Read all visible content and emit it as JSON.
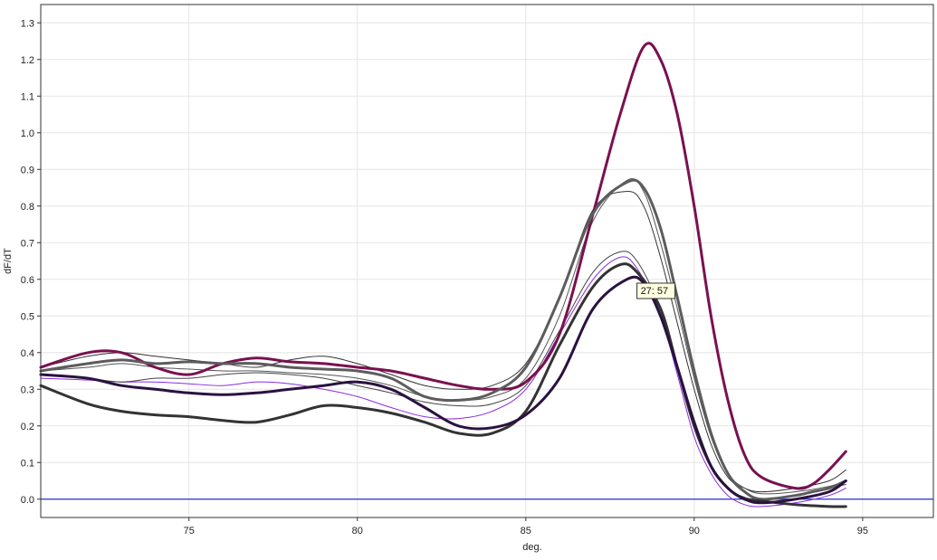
{
  "chart_data": {
    "type": "line",
    "title": "",
    "xlabel": "deg.",
    "ylabel": "dF/dT",
    "xlim": [
      70.6,
      97.1
    ],
    "ylim": [
      -0.05,
      1.35
    ],
    "x_ticks": [
      75,
      80,
      85,
      90,
      95
    ],
    "y_ticks": [
      0.0,
      0.1,
      0.2,
      0.3,
      0.4,
      0.5,
      0.6,
      0.7,
      0.8,
      0.9,
      1.0,
      1.1,
      1.2,
      1.3
    ],
    "y_tick_labels": [
      "0.0",
      "0.1",
      "0.2",
      "0.3",
      "0.4",
      "0.5",
      "0.6",
      "0.7",
      "0.8",
      "0.9",
      "1.0",
      "1.1",
      "1.2",
      "1.3"
    ],
    "grid": true,
    "baseline": {
      "y": 0.0,
      "color": "#2233cc"
    },
    "tooltip": {
      "text": "27: 57",
      "x": 88.3,
      "y": 0.55
    },
    "series": [
      {
        "color": "#7a1050",
        "width": 3,
        "points": [
          [
            70.6,
            0.36
          ],
          [
            72,
            0.4
          ],
          [
            73,
            0.4
          ],
          [
            74,
            0.36
          ],
          [
            75,
            0.34
          ],
          [
            76,
            0.37
          ],
          [
            77,
            0.385
          ],
          [
            78,
            0.375
          ],
          [
            79,
            0.37
          ],
          [
            80,
            0.36
          ],
          [
            81,
            0.35
          ],
          [
            82,
            0.33
          ],
          [
            83,
            0.31
          ],
          [
            84,
            0.3
          ],
          [
            85,
            0.32
          ],
          [
            86,
            0.45
          ],
          [
            87,
            0.78
          ],
          [
            87.8,
            1.05
          ],
          [
            88.5,
            1.235
          ],
          [
            89,
            1.2
          ],
          [
            89.5,
            1.05
          ],
          [
            90,
            0.8
          ],
          [
            90.5,
            0.5
          ],
          [
            91,
            0.27
          ],
          [
            91.5,
            0.12
          ],
          [
            92,
            0.06
          ],
          [
            93,
            0.03
          ],
          [
            93.5,
            0.04
          ],
          [
            94,
            0.08
          ],
          [
            94.5,
            0.13
          ]
        ]
      },
      {
        "color": "#5c5c5c",
        "width": 3,
        "points": [
          [
            70.6,
            0.35
          ],
          [
            72,
            0.37
          ],
          [
            73,
            0.38
          ],
          [
            74,
            0.37
          ],
          [
            75,
            0.375
          ],
          [
            76,
            0.37
          ],
          [
            77,
            0.37
          ],
          [
            78,
            0.36
          ],
          [
            79,
            0.355
          ],
          [
            80,
            0.35
          ],
          [
            81,
            0.33
          ],
          [
            82,
            0.28
          ],
          [
            83,
            0.27
          ],
          [
            84,
            0.29
          ],
          [
            85,
            0.36
          ],
          [
            86,
            0.55
          ],
          [
            87,
            0.78
          ],
          [
            88,
            0.865
          ],
          [
            88.5,
            0.85
          ],
          [
            89,
            0.74
          ],
          [
            89.5,
            0.55
          ],
          [
            90,
            0.35
          ],
          [
            90.5,
            0.18
          ],
          [
            91,
            0.07
          ],
          [
            91.5,
            0.02
          ],
          [
            92,
            0.0
          ],
          [
            93,
            0.01
          ],
          [
            93.5,
            0.02
          ],
          [
            94,
            0.03
          ],
          [
            94.5,
            0.05
          ]
        ]
      },
      {
        "color": "#333333",
        "width": 3,
        "points": [
          [
            70.6,
            0.31
          ],
          [
            72,
            0.26
          ],
          [
            73,
            0.24
          ],
          [
            74,
            0.23
          ],
          [
            75,
            0.225
          ],
          [
            76,
            0.215
          ],
          [
            77,
            0.21
          ],
          [
            78,
            0.23
          ],
          [
            79,
            0.255
          ],
          [
            80,
            0.25
          ],
          [
            81,
            0.235
          ],
          [
            82,
            0.21
          ],
          [
            83,
            0.18
          ],
          [
            84,
            0.18
          ],
          [
            85,
            0.24
          ],
          [
            86,
            0.42
          ],
          [
            87,
            0.58
          ],
          [
            87.8,
            0.64
          ],
          [
            88.3,
            0.62
          ],
          [
            89,
            0.52
          ],
          [
            89.5,
            0.36
          ],
          [
            90,
            0.2
          ],
          [
            90.5,
            0.09
          ],
          [
            91,
            0.03
          ],
          [
            91.5,
            0.0
          ],
          [
            92,
            -0.005
          ],
          [
            93,
            -0.015
          ],
          [
            94,
            -0.02
          ],
          [
            94.5,
            -0.02
          ]
        ]
      },
      {
        "color": "#2a1240",
        "width": 3,
        "points": [
          [
            70.6,
            0.34
          ],
          [
            72,
            0.33
          ],
          [
            73,
            0.31
          ],
          [
            74,
            0.3
          ],
          [
            75,
            0.29
          ],
          [
            76,
            0.285
          ],
          [
            77,
            0.29
          ],
          [
            78,
            0.3
          ],
          [
            79,
            0.31
          ],
          [
            80,
            0.32
          ],
          [
            81,
            0.3
          ],
          [
            82,
            0.25
          ],
          [
            83,
            0.2
          ],
          [
            84,
            0.195
          ],
          [
            85,
            0.23
          ],
          [
            86,
            0.33
          ],
          [
            87,
            0.52
          ],
          [
            88,
            0.6
          ],
          [
            88.5,
            0.59
          ],
          [
            89,
            0.5
          ],
          [
            89.5,
            0.36
          ],
          [
            90,
            0.21
          ],
          [
            90.5,
            0.09
          ],
          [
            91,
            0.03
          ],
          [
            91.5,
            0.0
          ],
          [
            92,
            -0.01
          ],
          [
            93,
            0.0
          ],
          [
            94,
            0.02
          ],
          [
            94.5,
            0.05
          ]
        ]
      },
      {
        "color": "#333333",
        "width": 1,
        "points": [
          [
            70.6,
            0.36
          ],
          [
            72,
            0.39
          ],
          [
            73,
            0.4
          ],
          [
            74,
            0.39
          ],
          [
            75,
            0.38
          ],
          [
            76,
            0.37
          ],
          [
            77,
            0.36
          ],
          [
            78,
            0.38
          ],
          [
            79,
            0.39
          ],
          [
            80,
            0.37
          ],
          [
            81,
            0.34
          ],
          [
            82,
            0.31
          ],
          [
            83,
            0.3
          ],
          [
            84,
            0.31
          ],
          [
            85,
            0.37
          ],
          [
            86,
            0.55
          ],
          [
            87,
            0.79
          ],
          [
            88,
            0.84
          ],
          [
            88.5,
            0.8
          ],
          [
            89,
            0.66
          ],
          [
            89.5,
            0.48
          ],
          [
            90,
            0.3
          ],
          [
            90.5,
            0.15
          ],
          [
            91,
            0.06
          ],
          [
            91.5,
            0.03
          ],
          [
            92,
            0.02
          ],
          [
            93,
            0.03
          ],
          [
            94,
            0.05
          ],
          [
            94.5,
            0.08
          ]
        ]
      },
      {
        "color": "#8a2be2",
        "width": 1,
        "points": [
          [
            70.6,
            0.33
          ],
          [
            72,
            0.325
          ],
          [
            73,
            0.32
          ],
          [
            74,
            0.32
          ],
          [
            75,
            0.315
          ],
          [
            76,
            0.31
          ],
          [
            77,
            0.32
          ],
          [
            78,
            0.315
          ],
          [
            79,
            0.3
          ],
          [
            80,
            0.28
          ],
          [
            81,
            0.25
          ],
          [
            82,
            0.225
          ],
          [
            83,
            0.22
          ],
          [
            84,
            0.24
          ],
          [
            85,
            0.3
          ],
          [
            86,
            0.45
          ],
          [
            87,
            0.6
          ],
          [
            87.8,
            0.66
          ],
          [
            88.3,
            0.63
          ],
          [
            89,
            0.5
          ],
          [
            89.5,
            0.34
          ],
          [
            90,
            0.17
          ],
          [
            90.5,
            0.07
          ],
          [
            91,
            0.01
          ],
          [
            91.5,
            -0.015
          ],
          [
            92,
            -0.02
          ],
          [
            93,
            -0.01
          ],
          [
            94,
            0.01
          ],
          [
            94.5,
            0.03
          ]
        ]
      },
      {
        "color": "#444444",
        "width": 1,
        "points": [
          [
            70.6,
            0.34
          ],
          [
            72,
            0.33
          ],
          [
            73,
            0.32
          ],
          [
            74,
            0.33
          ],
          [
            75,
            0.33
          ],
          [
            76,
            0.34
          ],
          [
            77,
            0.345
          ],
          [
            78,
            0.34
          ],
          [
            79,
            0.33
          ],
          [
            80,
            0.31
          ],
          [
            81,
            0.29
          ],
          [
            82,
            0.265
          ],
          [
            83,
            0.255
          ],
          [
            84,
            0.26
          ],
          [
            85,
            0.31
          ],
          [
            86,
            0.46
          ],
          [
            87,
            0.62
          ],
          [
            87.8,
            0.675
          ],
          [
            88.3,
            0.65
          ],
          [
            89,
            0.52
          ],
          [
            89.5,
            0.36
          ],
          [
            90,
            0.2
          ],
          [
            90.5,
            0.09
          ],
          [
            91,
            0.03
          ],
          [
            91.5,
            0.005
          ],
          [
            92,
            0.0
          ],
          [
            93,
            0.01
          ],
          [
            94,
            0.03
          ],
          [
            94.5,
            0.04
          ]
        ]
      },
      {
        "color": "#555555",
        "width": 1,
        "points": [
          [
            70.6,
            0.35
          ],
          [
            72,
            0.36
          ],
          [
            73,
            0.37
          ],
          [
            74,
            0.36
          ],
          [
            75,
            0.355
          ],
          [
            76,
            0.35
          ],
          [
            77,
            0.35
          ],
          [
            78,
            0.345
          ],
          [
            79,
            0.34
          ],
          [
            80,
            0.33
          ],
          [
            81,
            0.31
          ],
          [
            82,
            0.28
          ],
          [
            83,
            0.27
          ],
          [
            84,
            0.28
          ],
          [
            85,
            0.33
          ],
          [
            86,
            0.5
          ],
          [
            87,
            0.76
          ],
          [
            88,
            0.87
          ],
          [
            88.5,
            0.84
          ],
          [
            89,
            0.7
          ],
          [
            89.5,
            0.52
          ],
          [
            90,
            0.33
          ],
          [
            90.5,
            0.17
          ],
          [
            91,
            0.07
          ],
          [
            91.5,
            0.03
          ],
          [
            92,
            0.015
          ],
          [
            93,
            0.02
          ],
          [
            94,
            0.035
          ],
          [
            94.5,
            0.05
          ]
        ]
      }
    ]
  }
}
